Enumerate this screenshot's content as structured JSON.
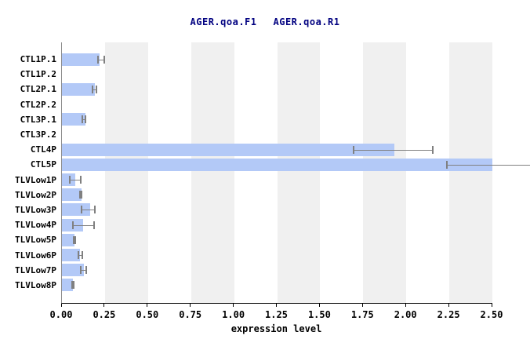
{
  "title": {
    "left": "AGER.qoa.F1",
    "right": "AGER.qoa.R1"
  },
  "chart_data": {
    "type": "bar",
    "orientation": "horizontal",
    "title": "AGER.qoa.F1   AGER.qoa.R1",
    "xlabel": "expression level",
    "xlim": [
      0,
      2.5
    ],
    "xticks": [
      0.0,
      0.25,
      0.5,
      0.75,
      1.0,
      1.25,
      1.5,
      1.75,
      2.0,
      2.25,
      2.5
    ],
    "xtick_labels": [
      "0.00",
      "0.25",
      "0.50",
      "0.75",
      "1.00",
      "1.25",
      "1.50",
      "1.75",
      "2.00",
      "2.25",
      "2.50"
    ],
    "grid": "off",
    "background_stripes": [
      [
        0.25,
        0.5
      ],
      [
        0.75,
        1.0
      ],
      [
        1.25,
        1.5
      ],
      [
        1.75,
        2.0
      ],
      [
        2.25,
        2.5
      ]
    ],
    "categories": [
      "CTL1P.1",
      "CTL1P.2",
      "CTL2P.1",
      "CTL2P.2",
      "CTL3P.1",
      "CTL3P.2",
      "CTL4P",
      "CTL5P",
      "TLVLow1P",
      "TLVLow2P",
      "TLVLow3P",
      "TLVLow4P",
      "TLVLow5P",
      "TLVLow6P",
      "TLVLow7P",
      "TLVLow8P"
    ],
    "values": [
      0.22,
      null,
      0.19,
      null,
      0.135,
      null,
      1.93,
      2.5,
      0.077,
      0.112,
      0.165,
      0.123,
      0.073,
      0.105,
      0.128,
      0.065
    ],
    "errors": [
      {
        "low": 0.205,
        "high": 0.25
      },
      null,
      {
        "low": 0.175,
        "high": 0.205
      },
      null,
      {
        "low": 0.113,
        "high": 0.143
      },
      null,
      {
        "low": 1.69,
        "high": 2.16
      },
      {
        "low": 2.23,
        "high": 2.72,
        "right_cap_clipped": true
      },
      {
        "low": 0.04,
        "high": 0.115
      },
      {
        "low": 0.1,
        "high": 0.118
      },
      {
        "low": 0.11,
        "high": 0.198
      },
      {
        "low": 0.058,
        "high": 0.19
      },
      {
        "low": 0.065,
        "high": 0.082
      },
      {
        "low": 0.092,
        "high": 0.123
      },
      {
        "low": 0.105,
        "high": 0.146
      },
      {
        "low": 0.055,
        "high": 0.075
      }
    ],
    "colors": {
      "bar": "#b3c9f7",
      "stripe": "#f0f0f0",
      "error_bar": "#808080",
      "title_text": "#000080",
      "axis": "#000000",
      "background": "#ffffff"
    }
  }
}
